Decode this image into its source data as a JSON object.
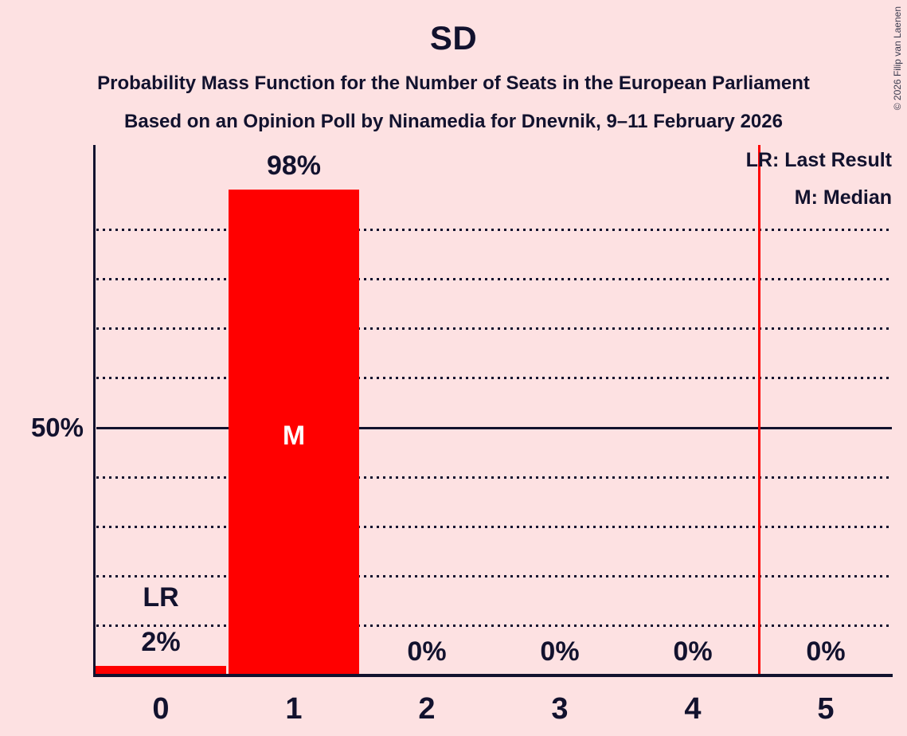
{
  "chart_data": {
    "type": "bar",
    "title": "SD",
    "subtitle": "Probability Mass Function for the Number of Seats in the European Parliament",
    "source_line": "Based on an Opinion Poll by Ninamedia for Dnevnik, 9–11 February 2026",
    "copyright": "© 2026 Filip van Laenen",
    "legend": {
      "lr": "LR: Last Result",
      "m": "M: Median"
    },
    "categories": [
      "0",
      "1",
      "2",
      "3",
      "4",
      "5"
    ],
    "values": [
      2,
      98,
      0,
      0,
      0,
      0
    ],
    "bar_labels": [
      "2%",
      "98%",
      "0%",
      "0%",
      "0%",
      "0%"
    ],
    "xlabel": "",
    "ylabel": "",
    "y_axis_label": "50%",
    "ylim": [
      0,
      100
    ],
    "gridlines_pct": [
      10,
      20,
      30,
      40,
      50,
      60,
      70,
      80,
      90
    ],
    "solid_gridline_pct": 50,
    "legend_position": "top-right",
    "median_marker": "M",
    "median_category": "1",
    "last_result_marker": "LR",
    "last_result_category": "0",
    "last_result_line_position": 4.5,
    "colors": {
      "background": "#FDE1E2",
      "bar": "#FF0000",
      "text": "#12122E",
      "median_text": "#FFFFFF",
      "last_result_line": "#FF0000"
    }
  }
}
